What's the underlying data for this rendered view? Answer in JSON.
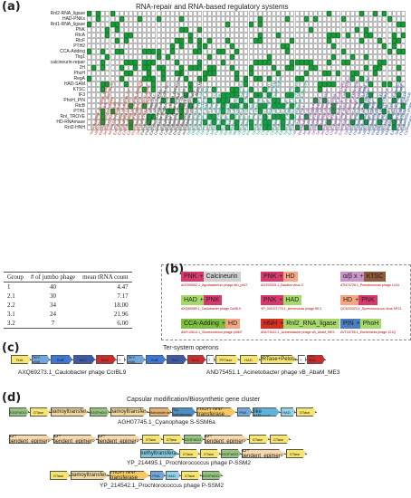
{
  "panel_a": {
    "label": "(a)",
    "title": "RNA-repair and RNA-based regulatory systems",
    "rows": [
      "Rnl2-RNA_ligase",
      "HAD-PNKs",
      "Rnl1-RNA_ligase",
      "PNK",
      "RtcA",
      "RtcF",
      "PTH2",
      "CCA-Adding",
      "Thg1",
      "calcineurin-repair",
      "2H",
      "PhoH",
      "RegA",
      "HAD-SAM",
      "KTSC",
      "IF3",
      "PhoH_PIN",
      "RtcB",
      "PTH1",
      "Rnl_TROVE",
      "HD-RNAmase",
      "Rnl2-HNH"
    ],
    "columns": [
      "Yersinia phage vB_YenM_YeM01",
      "Vibrio phage 1.120.A._10N.286.46",
      "Bacillus virus Moonbeam",
      "Aeromonas phage 56",
      "Aeromonas phage 65.2",
      "Erwinia phage vB_EamM_Y3",
      "Erwinia phage Ea35-70",
      "Erwinia phage vB_EamM_RisingSun",
      "Escherichia phage 121Q",
      "Prochlorococcus phage P-SSM2",
      "Salmonella phage SPN3US",
      "Pseudomonas phage PA7",
      "Pseudomonas phage PhiPA3",
      "Escherichia phage vB_EcoM_G17",
      "Caulobacter phage Cr30",
      "Erwinia phage vB_EamM_Deimos-Minion",
      "Caulobacter phage CcrBL9",
      "Pseudomonas phage 201phi2-1",
      "Pseudomonas phage KTN4",
      "Prochlorococcus phage Syn1",
      "Acinetobacter phage vB_AbaM_ME3",
      "Synechococcus phage S-SSM7",
      "Dickeya phage vB_DsoM_JA33",
      "Cyanophage S-SSM6a",
      "Synechococcus phage S-CAM7",
      "Pseudomonas phage OBP",
      "Aeromonas phage phiAS4",
      "Pseudomonas phage PaBG",
      "Vibrio phage ValKK3",
      "Bacillus phage vB_BceM_Bc431v3",
      "Streptomyces phage phiCAM",
      "Mycobacterium phage Patience",
      "Vibrio phage pTD1",
      "Cyanophage P-TIM40",
      "Pseudomonas phage phiKZ",
      "Synechococcus phage S-SCSM1",
      "Synechococcus phage ACG-2014g",
      "Cronobacter phage vB_CsaM_GAP32",
      "Pseudomonas phage EL",
      "Cyanophage S-TIM5",
      "Synechococcus phage S-SKS1",
      "Escherichia phage vB_EcoM_Sa45",
      "Synechococcus phage S-PM2",
      "Enterobacter phage vB_EclM_CIP9",
      "Vibrio phage pVp-1",
      "Bacillus phage G",
      "Aeromonas phage AS-gz",
      "Aeromonas phage phiR2",
      "Sinorhizobium phage phiM12",
      "Serratia phage PhiSRP",
      "Aeromonas phage Aes508",
      "Escherichia phage vB_EcoM_VR5",
      "Cronobacter phage vB_CsaM_GAP31",
      "Yersinia phage phiR1-37",
      "Enterobacter phage vB_KleM_RaK2",
      "Synechococcus phage S-RSM4",
      "Pectobacterium phage vB_PatM_CB7",
      "Pseudomonas phage phiPA3",
      "Tenacibaculum phage PTm1",
      "Vibrio phage ValKK3b",
      "Xanthomonas phage XacF1",
      "Pseudomonas phage PhiKZ-2",
      "Bacillus phage AR9",
      "Vibrio phage vB_VmeM-Yong-XC32",
      "Klebsiella phage vB_KleM_RaK2",
      "Escherichia phage PBECO4",
      "Salmonella phage SPN3UB",
      "Pseudomonas phage vB_PaeM_MIJ3",
      "Cyanophage Syn30"
    ]
  },
  "table": {
    "headers": [
      "Group",
      "# of jumbo phage",
      "mean tRNA count"
    ],
    "rows": [
      [
        "1",
        "40",
        "4.47"
      ],
      [
        "2.1",
        "30",
        "7.17"
      ],
      [
        "2.2",
        "34",
        "18.00"
      ],
      [
        "3.1",
        "24",
        "21.96"
      ],
      [
        "3.2",
        "7",
        "6.00"
      ]
    ]
  },
  "panel_b": {
    "label": "(b)",
    "items": [
      {
        "parts": [
          "PNK",
          "Calcineurin"
        ],
        "acc": "AGO99062.1_Agrobacterium phage Atu_ph07"
      },
      {
        "parts": [
          "PNK",
          "HD"
        ],
        "acc": "AOZ92525.1_Bacillus virus G"
      },
      {
        "parts": [
          "α/β x",
          "KTSC"
        ],
        "acc": "ATN74726.1_Pseudomonas phage LU11"
      },
      {
        "parts": [
          "HAD",
          "PNK"
        ],
        "acc": "AXQ69389.1_Caulobacter phage CcrBL9"
      },
      {
        "parts": [
          "PNK",
          "HAD"
        ],
        "acc": "YP_001071775.1_Aeromonas phage 65.2"
      },
      {
        "parts": [
          "HD",
          "PNK"
        ],
        "acc": "QCW20323.1_Synechococcus virus SP21"
      },
      {
        "parts": [
          "CCA-Adding",
          "HD"
        ],
        "acc": "AWY10814.1_Sinorhizobium phage phiM7"
      },
      {
        "parts": [
          "HNH",
          "Rnl2_RNA_ligase"
        ],
        "acc": "AND75422.1_Acinetobacter phage vB_AbaM_ME3"
      },
      {
        "parts": [
          "PIN",
          "PhoH"
        ],
        "acc": "AVT16755.1_Escherichia phage 121Q"
      }
    ]
  },
  "panel_c": {
    "label": "(c)",
    "title": "Ter-system operons",
    "op1": {
      "genes": [
        "TelA",
        "TerY-vWA",
        "TerB",
        "TerC",
        "TerD",
        "?"
      ],
      "caption": "AXQ69273.1_Caulobacter phage CcrBL9"
    },
    "op2": {
      "genes": [
        "TerY-vWA",
        "TerB",
        "TerC",
        "TerD",
        "?",
        "PRTase",
        "HAD",
        "PRTase+Pelota",
        "?",
        "Tlm-TerD-TIR"
      ],
      "caption": "AND75451.1_Acinetobacter phage vB_AbaM_ME3"
    }
  },
  "panel_d": {
    "label": "(d)",
    "title": "Capsular modification/Biosynthetic gene cluster",
    "op1": {
      "genes": [
        "2OGFeDO",
        "GTase",
        "Carbamoyltransferase",
        "2OGFeDO",
        "Carbamoyltransferase",
        "Sulfotransferase",
        "Trp-halogenase",
        "HIGH NNF transferase",
        "PNK",
        "Darmin like NRase",
        "HAD",
        "GTase"
      ],
      "caption": "AGH07745.1_Cyanophage S-SSM6a"
    },
    "op2": {
      "genes": [
        "2OGFeDO",
        "GTase",
        "Carbamoyltransferase",
        "2OGFeDO",
        "Carbamoyltransferase",
        "GTase"
      ],
      "caption": ""
    },
    "op3": {
      "genes": [
        "NAD+ dependent_epimerase",
        "NAD+ dependent_epimerase",
        "NAD+ dependent_epimerase",
        "GTase",
        "GTase",
        "2OGFeDO",
        "NAD+ dependent_epimerase",
        "GTase",
        "GTase"
      ],
      "caption": ""
    },
    "op4": {
      "genes": [
        "Dimethyltransferase",
        "GTase",
        "GTase",
        "2OGFeDO",
        "NAD+ dependent_epimerase",
        "GTase"
      ],
      "caption": "YP_214495.1_Prochlorococcus phage P-SSM2"
    },
    "op5": {
      "genes": [
        "GTase",
        "Carbamoyltransferase",
        "HIGH NNF transferase",
        "PNK",
        "HAD",
        "GTase",
        "2OGFeDO"
      ],
      "caption": "YP_214542.1_Prochlorococcus phage P-SSM2"
    }
  }
}
